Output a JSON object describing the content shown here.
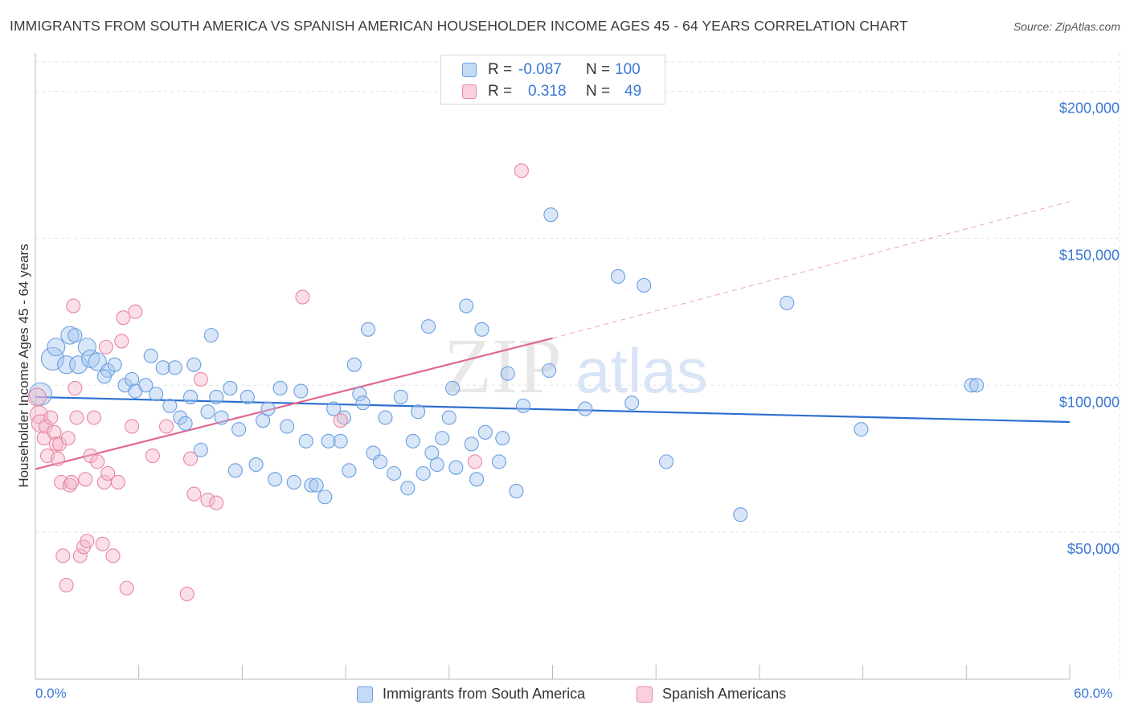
{
  "title": "IMMIGRANTS FROM SOUTH AMERICA VS SPANISH AMERICAN HOUSEHOLDER INCOME AGES 45 - 64 YEARS CORRELATION CHART",
  "source": "Source: ZipAtlas.com",
  "watermark": {
    "zip": "ZIP",
    "atlas": "atlas"
  },
  "legend": {
    "rows": [
      {
        "r_label": "R =",
        "r_value": "-0.087",
        "n_label": "N =",
        "n_value": "100",
        "color": "#a9c8f0"
      },
      {
        "r_label": "R =",
        "r_value": "0.318",
        "n_label": "N =",
        "n_value": "49",
        "color": "#f5b8cb"
      }
    ]
  },
  "bottom_legend": [
    {
      "label": "Immigrants from South America",
      "color": "#a9c8f0"
    },
    {
      "label": "Spanish Americans",
      "color": "#f5b8cb"
    }
  ],
  "chart_data": {
    "type": "scatter",
    "ylabel": "Householder Income Ages 45 - 64 years",
    "xlabel": "",
    "xlim": [
      0,
      60
    ],
    "ylim": [
      0,
      210000
    ],
    "x_tick_labels": {
      "left": "0.0%",
      "right": "60.0%"
    },
    "y_ticks": [
      {
        "value": 50000,
        "label": "$50,000"
      },
      {
        "value": 100000,
        "label": "$100,000"
      },
      {
        "value": 150000,
        "label": "$150,000"
      },
      {
        "value": 200000,
        "label": "$200,000"
      }
    ],
    "series": [
      {
        "name": "Immigrants from South America",
        "color": "#6a9fe0",
        "fill": "#a9c8f0",
        "trend": {
          "x0": 0,
          "y0": 96000,
          "x1": 60,
          "y1": 87500,
          "color": "#2d6fd0"
        },
        "points": [
          [
            0.3,
            97000,
            3
          ],
          [
            1.0,
            109000,
            3
          ],
          [
            1.2,
            113000,
            2
          ],
          [
            1.8,
            107000,
            2
          ],
          [
            2.0,
            117000,
            2
          ],
          [
            2.3,
            117000,
            1
          ],
          [
            2.5,
            107000,
            2
          ],
          [
            3.0,
            113000,
            2
          ],
          [
            3.2,
            109000,
            2
          ],
          [
            3.6,
            108000,
            2
          ],
          [
            4.2,
            105000,
            1
          ],
          [
            4.0,
            103000,
            1
          ],
          [
            4.6,
            107000,
            1
          ],
          [
            5.2,
            100000,
            1
          ],
          [
            5.6,
            102000,
            1
          ],
          [
            5.8,
            98000,
            1
          ],
          [
            6.4,
            100000,
            1
          ],
          [
            6.7,
            110000,
            1
          ],
          [
            7.0,
            97000,
            1
          ],
          [
            7.4,
            106000,
            1
          ],
          [
            7.8,
            93000,
            1
          ],
          [
            8.1,
            106000,
            1
          ],
          [
            8.4,
            89000,
            1
          ],
          [
            8.7,
            87000,
            1
          ],
          [
            9.0,
            96000,
            1
          ],
          [
            9.2,
            107000,
            1
          ],
          [
            9.6,
            78000,
            1
          ],
          [
            10.0,
            91000,
            1
          ],
          [
            10.2,
            117000,
            1
          ],
          [
            10.5,
            96000,
            1
          ],
          [
            10.8,
            89000,
            1
          ],
          [
            11.3,
            99000,
            1
          ],
          [
            11.6,
            71000,
            1
          ],
          [
            11.8,
            85000,
            1
          ],
          [
            12.3,
            96000,
            1
          ],
          [
            12.8,
            73000,
            1
          ],
          [
            13.2,
            88000,
            1
          ],
          [
            13.5,
            92000,
            1
          ],
          [
            13.9,
            68000,
            1
          ],
          [
            14.2,
            99000,
            1
          ],
          [
            14.6,
            86000,
            1
          ],
          [
            15.0,
            67000,
            1
          ],
          [
            15.4,
            98000,
            1
          ],
          [
            15.7,
            81000,
            1
          ],
          [
            16.0,
            66000,
            1
          ],
          [
            16.3,
            66000,
            1
          ],
          [
            16.8,
            62000,
            1
          ],
          [
            17.0,
            81000,
            1
          ],
          [
            17.3,
            92000,
            1
          ],
          [
            17.7,
            81000,
            1
          ],
          [
            17.9,
            89000,
            1
          ],
          [
            18.2,
            71000,
            1
          ],
          [
            18.5,
            107000,
            1
          ],
          [
            18.8,
            97000,
            1
          ],
          [
            19.0,
            94000,
            1
          ],
          [
            19.3,
            119000,
            1
          ],
          [
            19.6,
            77000,
            1
          ],
          [
            20.0,
            74000,
            1
          ],
          [
            20.3,
            89000,
            1
          ],
          [
            20.8,
            70000,
            1
          ],
          [
            21.2,
            96000,
            1
          ],
          [
            21.6,
            65000,
            1
          ],
          [
            21.9,
            81000,
            1
          ],
          [
            22.2,
            91000,
            1
          ],
          [
            22.5,
            70000,
            1
          ],
          [
            22.8,
            120000,
            1
          ],
          [
            23.0,
            77000,
            1
          ],
          [
            23.3,
            73000,
            1
          ],
          [
            23.6,
            82000,
            1
          ],
          [
            24.0,
            89000,
            1
          ],
          [
            24.2,
            99000,
            1
          ],
          [
            24.4,
            72000,
            1
          ],
          [
            25.0,
            127000,
            1
          ],
          [
            25.3,
            80000,
            1
          ],
          [
            25.6,
            68000,
            1
          ],
          [
            25.9,
            119000,
            1
          ],
          [
            26.1,
            84000,
            1
          ],
          [
            26.9,
            74000,
            1
          ],
          [
            27.1,
            82000,
            1
          ],
          [
            27.4,
            104000,
            1
          ],
          [
            27.9,
            64000,
            1
          ],
          [
            28.3,
            93000,
            1
          ],
          [
            29.8,
            105000,
            1
          ],
          [
            29.9,
            158000,
            1
          ],
          [
            31.9,
            92000,
            1
          ],
          [
            33.8,
            137000,
            1
          ],
          [
            34.6,
            94000,
            1
          ],
          [
            35.3,
            134000,
            1
          ],
          [
            36.6,
            74000,
            1
          ],
          [
            40.9,
            56000,
            1
          ],
          [
            43.6,
            128000,
            1
          ],
          [
            47.9,
            85000,
            1
          ],
          [
            54.3,
            100000,
            1
          ],
          [
            54.6,
            100000,
            1
          ]
        ]
      },
      {
        "name": "Spanish Americans",
        "color": "#e8889f",
        "fill": "#f5b8cb",
        "trend": {
          "x0": 0,
          "y0": 71500,
          "x1": 30,
          "y1": 116000,
          "color": "#e06790"
        },
        "trend_ext": {
          "x0": 30,
          "y0": 116000,
          "x1": 60,
          "y1": 162500
        },
        "points": [
          [
            0.1,
            96000,
            2
          ],
          [
            0.2,
            90000,
            2
          ],
          [
            0.3,
            87000,
            2
          ],
          [
            0.5,
            82000,
            1
          ],
          [
            0.6,
            86000,
            1
          ],
          [
            0.7,
            76000,
            1
          ],
          [
            0.9,
            89000,
            1
          ],
          [
            1.1,
            84000,
            1
          ],
          [
            1.2,
            80000,
            1
          ],
          [
            1.3,
            75000,
            1
          ],
          [
            1.4,
            80000,
            1
          ],
          [
            1.5,
            67000,
            1
          ],
          [
            1.6,
            42000,
            1
          ],
          [
            1.8,
            32000,
            1
          ],
          [
            1.9,
            82000,
            1
          ],
          [
            2.0,
            66000,
            1
          ],
          [
            2.1,
            67000,
            1
          ],
          [
            2.2,
            127000,
            1
          ],
          [
            2.3,
            99000,
            1
          ],
          [
            2.4,
            89000,
            1
          ],
          [
            2.6,
            42000,
            1
          ],
          [
            2.8,
            45000,
            1
          ],
          [
            2.9,
            68000,
            1
          ],
          [
            3.0,
            47000,
            1
          ],
          [
            3.2,
            76000,
            1
          ],
          [
            3.4,
            89000,
            1
          ],
          [
            3.6,
            74000,
            1
          ],
          [
            3.9,
            46000,
            1
          ],
          [
            4.0,
            67000,
            1
          ],
          [
            4.1,
            113000,
            1
          ],
          [
            4.2,
            70000,
            1
          ],
          [
            4.5,
            42000,
            1
          ],
          [
            4.8,
            67000,
            1
          ],
          [
            5.0,
            115000,
            1
          ],
          [
            5.1,
            123000,
            1
          ],
          [
            5.3,
            31000,
            1
          ],
          [
            5.8,
            125000,
            1
          ],
          [
            5.6,
            86000,
            1
          ],
          [
            6.8,
            76000,
            1
          ],
          [
            7.6,
            86000,
            1
          ],
          [
            8.8,
            29000,
            1
          ],
          [
            9.0,
            75000,
            1
          ],
          [
            9.2,
            63000,
            1
          ],
          [
            9.6,
            102000,
            1
          ],
          [
            10.0,
            61000,
            1
          ],
          [
            10.5,
            60000,
            1
          ],
          [
            15.5,
            130000,
            1
          ],
          [
            17.7,
            88000,
            1
          ],
          [
            25.5,
            74000,
            1
          ],
          [
            28.2,
            173000,
            1
          ]
        ]
      }
    ]
  }
}
